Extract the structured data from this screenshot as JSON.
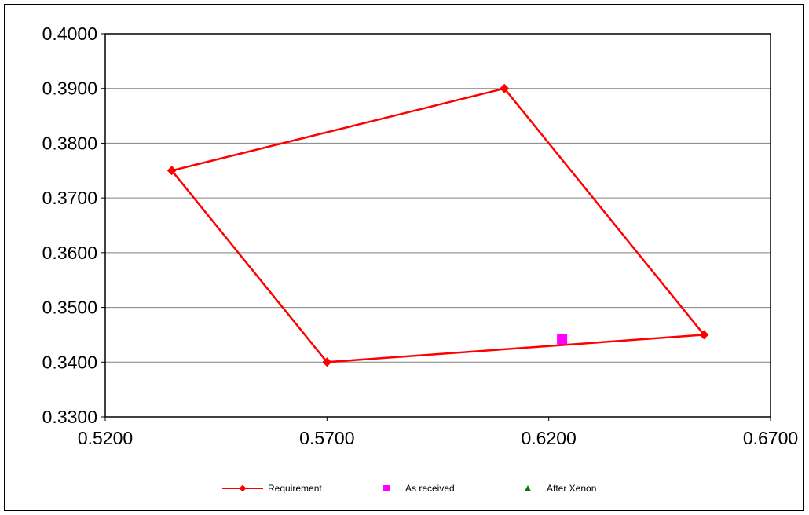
{
  "chart_data": {
    "type": "scatter",
    "title": "",
    "xlabel": "",
    "ylabel": "",
    "xlim": [
      0.52,
      0.67
    ],
    "ylim": [
      0.33,
      0.4
    ],
    "x_ticks": [
      "0.5200",
      "0.5700",
      "0.6200",
      "0.6700"
    ],
    "y_ticks": [
      "0.3300",
      "0.3400",
      "0.3500",
      "0.3600",
      "0.3700",
      "0.3800",
      "0.3900",
      "0.4000"
    ],
    "grid": "horizontal",
    "legend_position": "bottom",
    "series": [
      {
        "name": "Requirement",
        "marker": "diamond",
        "line": true,
        "color": "#ff0000",
        "points": [
          [
            0.535,
            0.375
          ],
          [
            0.61,
            0.39
          ],
          [
            0.655,
            0.345
          ],
          [
            0.57,
            0.34
          ],
          [
            0.535,
            0.375
          ]
        ]
      },
      {
        "name": "As received",
        "marker": "square",
        "line": false,
        "color": "#ff00ff",
        "points": [
          [
            0.623,
            0.3442
          ]
        ]
      },
      {
        "name": "After Xenon",
        "marker": "triangle",
        "line": false,
        "color": "#008000",
        "points": []
      }
    ]
  }
}
